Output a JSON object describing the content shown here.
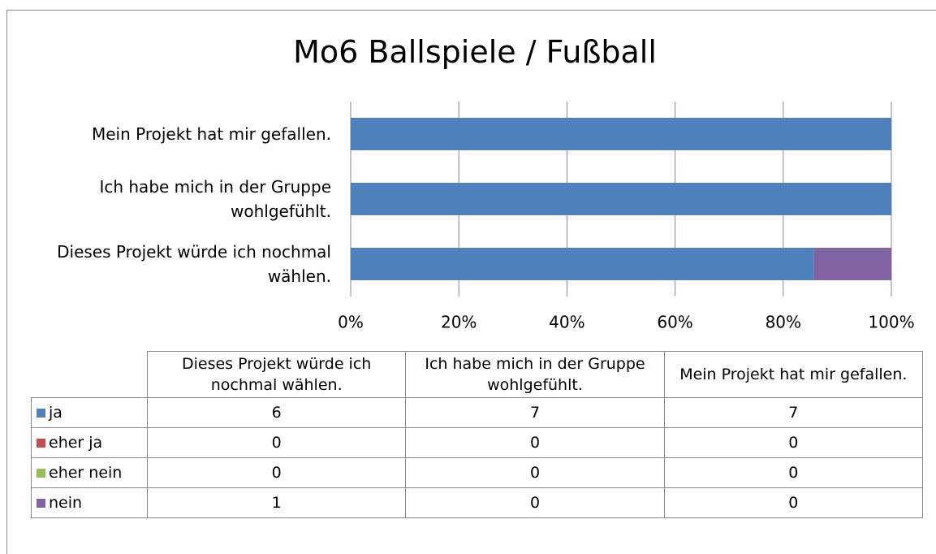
{
  "chart_data": {
    "type": "bar",
    "stacked": "percent",
    "orientation": "horizontal",
    "title": "Mo6 Ballspiele / Fußball",
    "categories": [
      "Dieses Projekt würde ich nochmal wählen.",
      "Ich habe mich in der Gruppe wohlgefühlt.",
      "Mein Projekt hat mir gefallen."
    ],
    "series": [
      {
        "name": "ja",
        "color": "#4f81bd",
        "values": [
          6,
          7,
          7
        ]
      },
      {
        "name": "eher ja",
        "color": "#c0504d",
        "values": [
          0,
          0,
          0
        ]
      },
      {
        "name": "eher nein",
        "color": "#9bbb59",
        "values": [
          0,
          0,
          0
        ]
      },
      {
        "name": "nein",
        "color": "#8064a2",
        "values": [
          1,
          0,
          0
        ]
      }
    ],
    "xlim": [
      0,
      100
    ],
    "xticks": [
      {
        "value": 0,
        "label": "0%"
      },
      {
        "value": 20,
        "label": "20%"
      },
      {
        "value": 40,
        "label": "40%"
      },
      {
        "value": 60,
        "label": "60%"
      },
      {
        "value": 80,
        "label": "80%"
      },
      {
        "value": 100,
        "label": "100%"
      }
    ],
    "grid": true,
    "data_table": true
  }
}
